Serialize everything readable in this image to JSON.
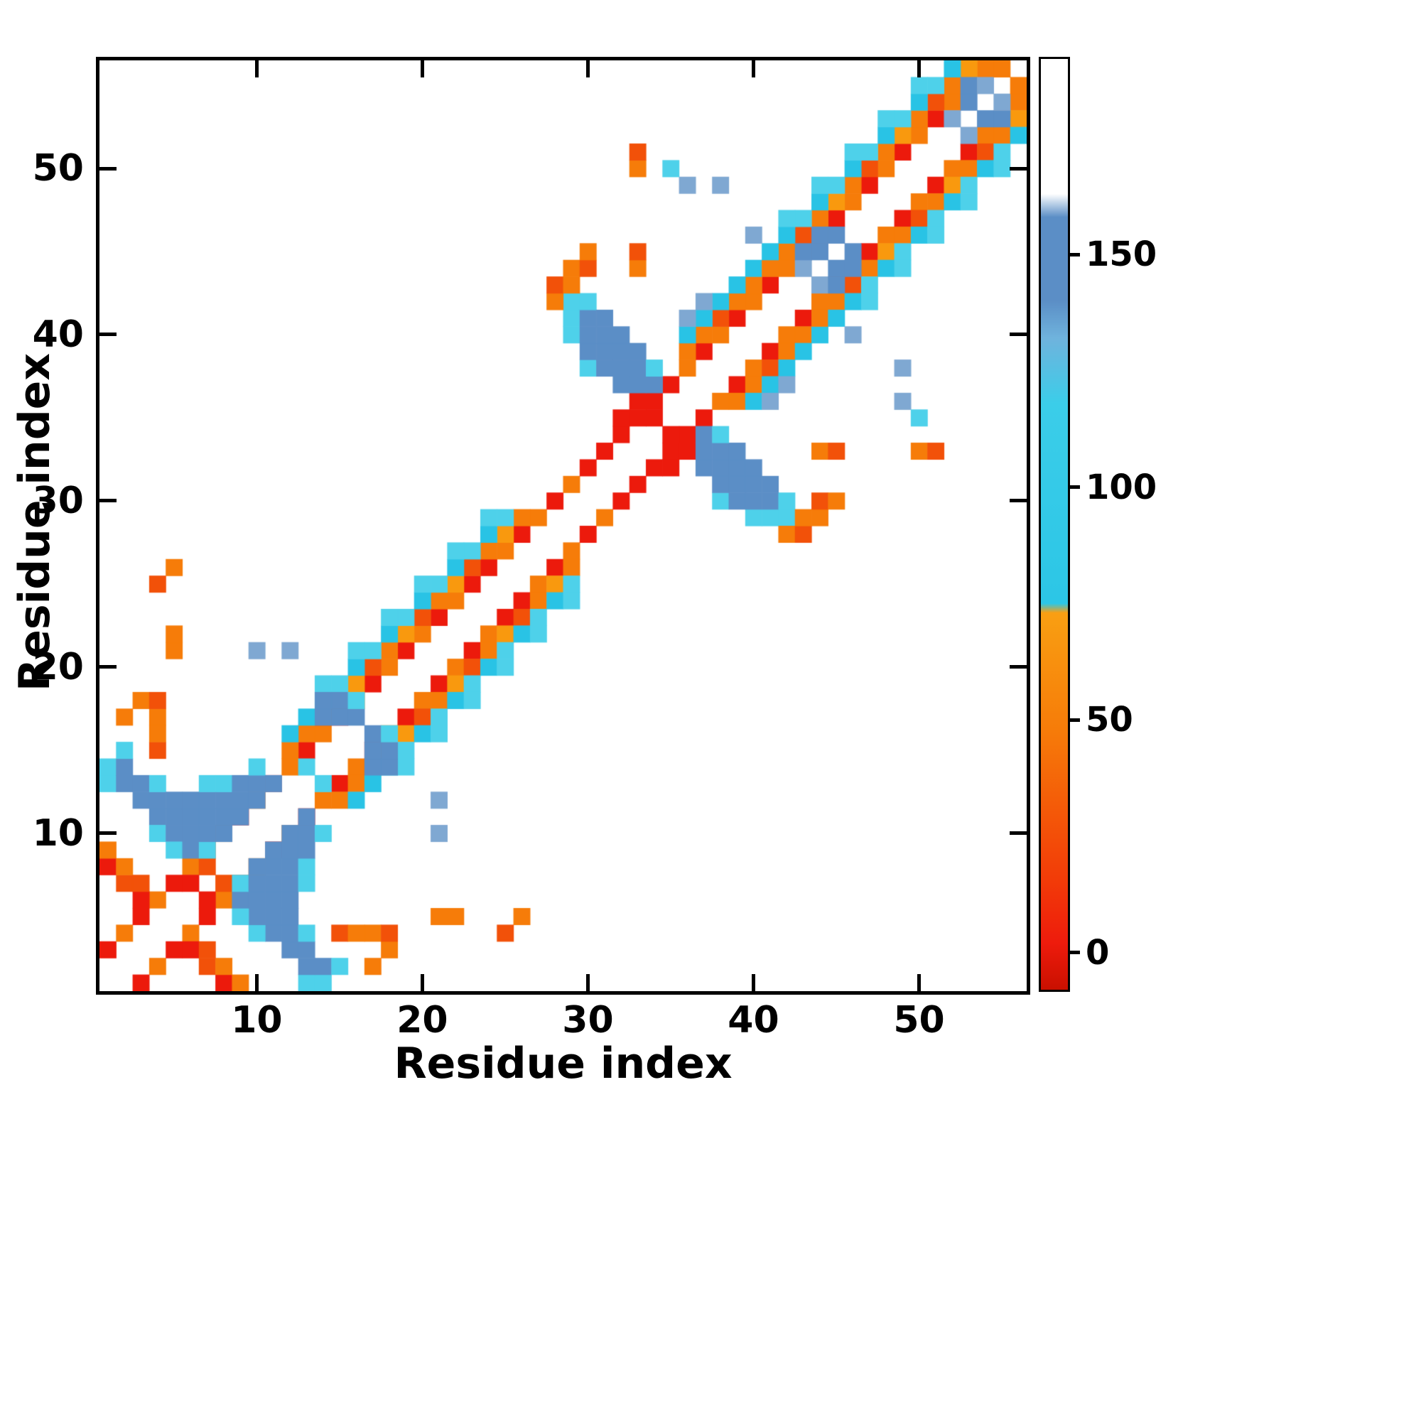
{
  "chart_data": {
    "type": "heatmap",
    "title": "",
    "xlabel": "Residue index",
    "ylabel": "Residue index",
    "n_residues": 56,
    "x_range": [
      0.5,
      56.5
    ],
    "y_range": [
      0.5,
      56.5
    ],
    "x_ticks": [
      10,
      20,
      30,
      40,
      50
    ],
    "y_ticks": [
      10,
      20,
      30,
      40,
      50
    ],
    "symmetric": true,
    "grid": false,
    "colormap": {
      "bins": [
        {
          "max": 15,
          "color": "#ec1a0c"
        },
        {
          "max": 42,
          "color": "#f25109"
        },
        {
          "max": 58,
          "color": "#f67c09"
        },
        {
          "max": 70,
          "color": "#f9990e"
        },
        {
          "max": 92,
          "color": "#29c3e5"
        },
        {
          "max": 115,
          "color": "#4ed1ea"
        },
        {
          "max": 132,
          "color": "#9bd9ee"
        },
        {
          "max": 147,
          "color": "#7fa8d2"
        },
        {
          "max": 168,
          "color": "#5b8ec6"
        },
        {
          "max": 99999,
          "color": "#ffffff"
        }
      ]
    },
    "colorbar": {
      "range": [
        -8,
        192
      ],
      "ticks": [
        0,
        50,
        100,
        150
      ],
      "gradient": [
        {
          "pos": 0.0,
          "color": "#c91000"
        },
        {
          "pos": 0.05,
          "color": "#ee1b0c"
        },
        {
          "pos": 0.12,
          "color": "#f23c08"
        },
        {
          "pos": 0.28,
          "color": "#f67c09"
        },
        {
          "pos": 0.405,
          "color": "#f99f12"
        },
        {
          "pos": 0.415,
          "color": "#2cc6e6"
        },
        {
          "pos": 0.63,
          "color": "#3bcde9"
        },
        {
          "pos": 0.7,
          "color": "#6fb3dd"
        },
        {
          "pos": 0.74,
          "color": "#5b8ec6"
        },
        {
          "pos": 0.83,
          "color": "#5b8ec6"
        },
        {
          "pos": 0.855,
          "color": "#ffffff"
        },
        {
          "pos": 1.0,
          "color": "#ffffff"
        }
      ]
    },
    "cells": [
      [
        1,
        3,
        10
      ],
      [
        2,
        4,
        45
      ],
      [
        3,
        5,
        10
      ],
      [
        4,
        6,
        45
      ],
      [
        5,
        7,
        10
      ],
      [
        6,
        8,
        45
      ],
      [
        7,
        9,
        40
      ],
      [
        8,
        10,
        45
      ],
      [
        9,
        11,
        10
      ],
      [
        10,
        12,
        45
      ],
      [
        11,
        13,
        10
      ],
      [
        12,
        14,
        45
      ],
      [
        13,
        15,
        10
      ],
      [
        14,
        16,
        45
      ],
      [
        15,
        17,
        10
      ],
      [
        16,
        18,
        45
      ],
      [
        17,
        19,
        10
      ],
      [
        18,
        20,
        45
      ],
      [
        19,
        21,
        10
      ],
      [
        20,
        22,
        45
      ],
      [
        21,
        23,
        10
      ],
      [
        22,
        24,
        45
      ],
      [
        23,
        25,
        10
      ],
      [
        24,
        26,
        8
      ],
      [
        25,
        27,
        45
      ],
      [
        26,
        28,
        10
      ],
      [
        27,
        29,
        45
      ],
      [
        28,
        30,
        10
      ],
      [
        29,
        31,
        45
      ],
      [
        30,
        32,
        10
      ],
      [
        31,
        33,
        8
      ],
      [
        32,
        34,
        8
      ],
      [
        33,
        35,
        8
      ],
      [
        34,
        36,
        8
      ],
      [
        35,
        37,
        8
      ],
      [
        36,
        38,
        45
      ],
      [
        37,
        39,
        10
      ],
      [
        38,
        40,
        45
      ],
      [
        39,
        41,
        10
      ],
      [
        40,
        42,
        45
      ],
      [
        41,
        43,
        10
      ],
      [
        42,
        44,
        45
      ],
      [
        43,
        45,
        10
      ],
      [
        44,
        46,
        45
      ],
      [
        45,
        47,
        10
      ],
      [
        46,
        48,
        45
      ],
      [
        47,
        49,
        10
      ],
      [
        48,
        50,
        45
      ],
      [
        49,
        51,
        10
      ],
      [
        50,
        52,
        45
      ],
      [
        51,
        53,
        10
      ],
      [
        52,
        54,
        45
      ],
      [
        53,
        55,
        10
      ],
      [
        54,
        56,
        45
      ],
      [
        6,
        7,
        10
      ],
      [
        7,
        8,
        40
      ],
      [
        34,
        35,
        8
      ],
      [
        12,
        15,
        55
      ],
      [
        13,
        16,
        55
      ],
      [
        14,
        17,
        35
      ],
      [
        15,
        18,
        55
      ],
      [
        16,
        19,
        60
      ],
      [
        17,
        20,
        35
      ],
      [
        18,
        21,
        55
      ],
      [
        19,
        22,
        60
      ],
      [
        20,
        23,
        35
      ],
      [
        21,
        24,
        55
      ],
      [
        22,
        25,
        60
      ],
      [
        23,
        26,
        35
      ],
      [
        24,
        27,
        55
      ],
      [
        25,
        28,
        60
      ],
      [
        26,
        29,
        55
      ],
      [
        12,
        16,
        90
      ],
      [
        13,
        17,
        90
      ],
      [
        14,
        18,
        90
      ],
      [
        15,
        19,
        95
      ],
      [
        16,
        20,
        90
      ],
      [
        17,
        21,
        95
      ],
      [
        18,
        22,
        90
      ],
      [
        19,
        23,
        95
      ],
      [
        20,
        24,
        90
      ],
      [
        21,
        25,
        95
      ],
      [
        22,
        26,
        90
      ],
      [
        23,
        27,
        95
      ],
      [
        24,
        28,
        90
      ],
      [
        25,
        29,
        95
      ],
      [
        14,
        19,
        100
      ],
      [
        16,
        21,
        100
      ],
      [
        18,
        23,
        100
      ],
      [
        20,
        25,
        100
      ],
      [
        22,
        27,
        100
      ],
      [
        24,
        29,
        100
      ],
      [
        36,
        39,
        55
      ],
      [
        37,
        40,
        55
      ],
      [
        38,
        41,
        35
      ],
      [
        39,
        42,
        55
      ],
      [
        40,
        43,
        55
      ],
      [
        36,
        40,
        90
      ],
      [
        37,
        41,
        90
      ],
      [
        38,
        42,
        90
      ],
      [
        39,
        43,
        90
      ],
      [
        40,
        44,
        90
      ],
      [
        36,
        41,
        140
      ],
      [
        37,
        42,
        140
      ],
      [
        41,
        44,
        55
      ],
      [
        42,
        45,
        55
      ],
      [
        43,
        46,
        35
      ],
      [
        44,
        47,
        55
      ],
      [
        45,
        48,
        60
      ],
      [
        46,
        49,
        55
      ],
      [
        47,
        50,
        35
      ],
      [
        48,
        51,
        55
      ],
      [
        49,
        52,
        60
      ],
      [
        50,
        53,
        55
      ],
      [
        51,
        54,
        35
      ],
      [
        52,
        55,
        55
      ],
      [
        53,
        56,
        60
      ],
      [
        41,
        45,
        90
      ],
      [
        42,
        46,
        90
      ],
      [
        43,
        47,
        95
      ],
      [
        44,
        48,
        90
      ],
      [
        45,
        49,
        95
      ],
      [
        46,
        50,
        90
      ],
      [
        47,
        51,
        95
      ],
      [
        48,
        52,
        90
      ],
      [
        49,
        53,
        95
      ],
      [
        50,
        54,
        90
      ],
      [
        51,
        55,
        95
      ],
      [
        52,
        56,
        90
      ],
      [
        42,
        47,
        100
      ],
      [
        44,
        49,
        100
      ],
      [
        46,
        51,
        100
      ],
      [
        48,
        53,
        100
      ],
      [
        50,
        55,
        100
      ],
      [
        1,
        8,
        10
      ],
      [
        2,
        7,
        40
      ],
      [
        2,
        8,
        55
      ],
      [
        3,
        6,
        10
      ],
      [
        3,
        7,
        40
      ],
      [
        1,
        9,
        55
      ],
      [
        1,
        13,
        95
      ],
      [
        1,
        14,
        95
      ],
      [
        2,
        13,
        150
      ],
      [
        2,
        14,
        150
      ],
      [
        2,
        15,
        95
      ],
      [
        3,
        12,
        150
      ],
      [
        3,
        13,
        150
      ],
      [
        4,
        11,
        150
      ],
      [
        4,
        12,
        150
      ],
      [
        4,
        13,
        95
      ],
      [
        4,
        10,
        95
      ],
      [
        5,
        10,
        150
      ],
      [
        5,
        11,
        150
      ],
      [
        5,
        12,
        150
      ],
      [
        5,
        9,
        95
      ],
      [
        6,
        9,
        150
      ],
      [
        6,
        10,
        150
      ],
      [
        6,
        11,
        150
      ],
      [
        6,
        12,
        150
      ],
      [
        7,
        9,
        95
      ],
      [
        7,
        10,
        150
      ],
      [
        7,
        11,
        150
      ],
      [
        7,
        12,
        150
      ],
      [
        7,
        13,
        95
      ],
      [
        8,
        10,
        150
      ],
      [
        8,
        11,
        150
      ],
      [
        8,
        12,
        150
      ],
      [
        8,
        13,
        95
      ],
      [
        9,
        11,
        150
      ],
      [
        9,
        12,
        150
      ],
      [
        9,
        13,
        150
      ],
      [
        10,
        12,
        150
      ],
      [
        10,
        13,
        150
      ],
      [
        10,
        14,
        95
      ],
      [
        11,
        13,
        150
      ],
      [
        13,
        14,
        95
      ],
      [
        32,
        35,
        8
      ],
      [
        33,
        36,
        8
      ],
      [
        29,
        40,
        95
      ],
      [
        29,
        41,
        95
      ],
      [
        29,
        42,
        95
      ],
      [
        30,
        38,
        95
      ],
      [
        30,
        39,
        150
      ],
      [
        30,
        40,
        150
      ],
      [
        30,
        41,
        150
      ],
      [
        30,
        42,
        95
      ],
      [
        31,
        38,
        150
      ],
      [
        31,
        39,
        150
      ],
      [
        31,
        40,
        150
      ],
      [
        31,
        41,
        150
      ],
      [
        32,
        37,
        150
      ],
      [
        32,
        38,
        150
      ],
      [
        32,
        39,
        150
      ],
      [
        32,
        40,
        150
      ],
      [
        33,
        37,
        150
      ],
      [
        33,
        38,
        150
      ],
      [
        33,
        39,
        150
      ],
      [
        34,
        37,
        150
      ],
      [
        34,
        38,
        95
      ],
      [
        28,
        42,
        55
      ],
      [
        28,
        43,
        40
      ],
      [
        29,
        43,
        55
      ],
      [
        29,
        44,
        55
      ],
      [
        30,
        44,
        40
      ],
      [
        30,
        45,
        55
      ],
      [
        14,
        17,
        150
      ],
      [
        15,
        17,
        150
      ],
      [
        16,
        17,
        150
      ],
      [
        14,
        18,
        150
      ],
      [
        15,
        18,
        150
      ],
      [
        16,
        18,
        95
      ],
      [
        10,
        21,
        145
      ],
      [
        12,
        21,
        145
      ],
      [
        36,
        49,
        140
      ],
      [
        38,
        49,
        140
      ],
      [
        40,
        46,
        140
      ],
      [
        43,
        44,
        140
      ],
      [
        44,
        45,
        150
      ],
      [
        45,
        46,
        150
      ],
      [
        43,
        45,
        150
      ],
      [
        44,
        46,
        150
      ],
      [
        52,
        53,
        140
      ],
      [
        53,
        54,
        150
      ],
      [
        53,
        55,
        150
      ],
      [
        54,
        55,
        140
      ],
      [
        2,
        17,
        55
      ],
      [
        3,
        18,
        55
      ],
      [
        4,
        17,
        55
      ],
      [
        4,
        18,
        40
      ],
      [
        4,
        15,
        40
      ],
      [
        4,
        16,
        55
      ],
      [
        5,
        21,
        55
      ],
      [
        5,
        22,
        55
      ],
      [
        4,
        25,
        40
      ],
      [
        5,
        26,
        55
      ],
      [
        33,
        44,
        55
      ],
      [
        33,
        45,
        40
      ],
      [
        33,
        50,
        55
      ],
      [
        33,
        51,
        40
      ],
      [
        35,
        50,
        95
      ],
      [
        55,
        56,
        55
      ]
    ]
  }
}
